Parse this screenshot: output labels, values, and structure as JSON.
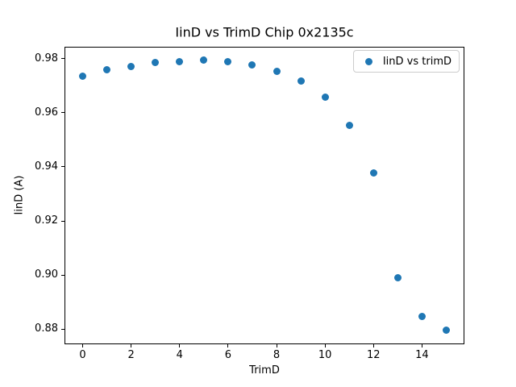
{
  "chart_data": {
    "type": "scatter",
    "title": "IinD vs TrimD Chip 0x2135c",
    "xlabel": "TrimD",
    "ylabel": "IinD (A)",
    "legend_label": "IinD vs trimD",
    "legend_position": "upper right",
    "marker_color": "#1f77b4",
    "marker_diameter_px": 9,
    "x": [
      0,
      1,
      2,
      3,
      4,
      5,
      6,
      7,
      8,
      9,
      10,
      11,
      12,
      13,
      14,
      15
    ],
    "y": [
      0.9735,
      0.976,
      0.9772,
      0.9785,
      0.9789,
      0.9795,
      0.979,
      0.9777,
      0.9753,
      0.9716,
      0.9657,
      0.9553,
      0.9378,
      0.899,
      0.8847,
      0.8797
    ],
    "xlim": [
      -0.75,
      15.75
    ],
    "ylim": [
      0.8744,
      0.9844
    ],
    "xticks": [
      0,
      2,
      4,
      6,
      8,
      10,
      12,
      14
    ],
    "yticks": [
      0.88,
      0.9,
      0.92,
      0.94,
      0.96,
      0.98
    ],
    "ytick_decimals": 2,
    "grid": false
  }
}
